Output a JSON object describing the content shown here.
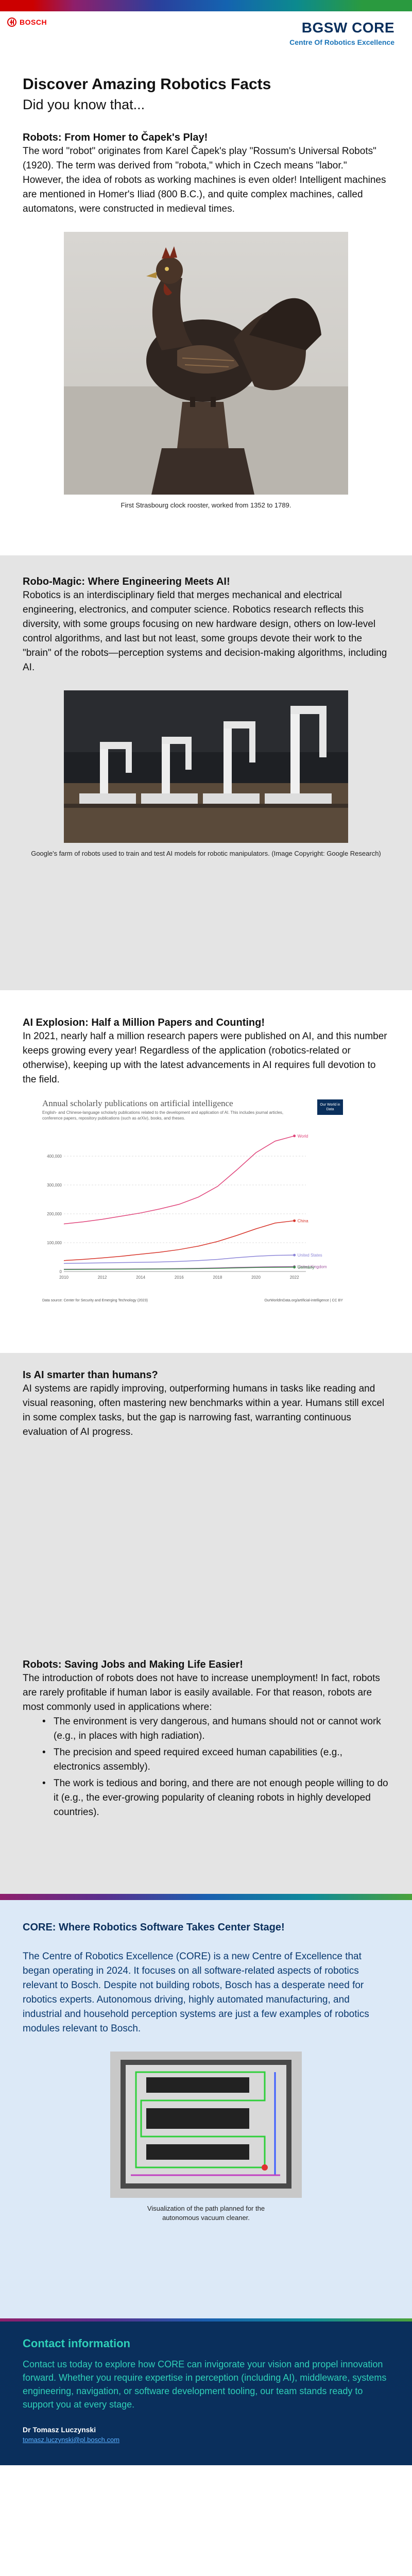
{
  "header": {
    "logo_text": "BOSCH",
    "brand_title": "BGSW CORE",
    "brand_subtitle": "Centre Of Robotics Excellence"
  },
  "intro": {
    "title": "Discover Amazing Robotics Facts",
    "subtitle": "Did you know that..."
  },
  "sections": {
    "homer": {
      "title": "Robots: From Homer to Čapek's Play!",
      "body": "The word \"robot\" originates from Karel Čapek's play \"Rossum's Universal Robots\" (1920). The term was derived from \"robota,\" which in Czech means \"labor.\" However, the idea of robots as working machines is even older! Intelligent machines are mentioned in Homer's Iliad (800 B.C.), and quite complex machines, called automatons, were constructed in medieval times.",
      "caption": "First Strasbourg clock rooster, worked from 1352 to 1789."
    },
    "robomagic": {
      "title": "Robo-Magic: Where Engineering Meets AI!",
      "body": "Robotics is an interdisciplinary field that merges mechanical and electrical engineering, electronics, and computer science. Robotics research reflects this diversity, with some groups focusing on new hardware design, others on low-level control algorithms, and last but not least, some groups devote their work to the \"brain\" of the robots—perception systems and decision-making algorithms, including AI.",
      "caption": "Google's farm of robots used to train and test AI models for robotic manipulators. (Image Copyright: Google Research)"
    },
    "explosion": {
      "title": "AI Explosion: Half a Million Papers and Counting!",
      "body": "In 2021, nearly half a million research papers were published on AI, and this number keeps growing every year! Regardless of the application (robotics-related or otherwise), keeping up with the latest advancements in AI requires full devotion to the field."
    },
    "smarter": {
      "title": "Is AI smarter than humans?",
      "body": "AI systems are rapidly improving, outperforming humans in tasks like reading and visual reasoning, often mastering new benchmarks within a year. Humans still excel in some complex tasks, but the gap is narrowing fast, warranting continuous evaluation of AI progress."
    },
    "jobs": {
      "title": "Robots: Saving Jobs and Making Life Easier!",
      "body": "The introduction of robots does not have to increase unemployment! In fact, robots are rarely profitable if human labor is easily available. For that reason, robots are most commonly used in applications where:",
      "bullets": [
        "The environment is very dangerous, and humans should not or cannot work (e.g., in places with high radiation).",
        "The precision and speed required exceed human capabilities (e.g., electronics assembly).",
        "The work is tedious and boring, and there are not enough people willing to do it (e.g., the ever-growing popularity of cleaning robots in highly developed countries)."
      ]
    },
    "core": {
      "title": "CORE: Where Robotics Software Takes Center Stage!",
      "body": "The Centre of Robotics Excellence (CORE) is a new Centre of Excellence that began operating in 2024. It focuses on all software-related aspects of robotics relevant to Bosch. Despite not building robots, Bosch has a desperate need for robotics experts. Autonomous driving, highly automated manufacturing, and industrial and household perception systems are just a few examples of robotics modules relevant to Bosch.",
      "caption": "Visualization of the path planned for the autonomous vacuum cleaner."
    }
  },
  "chart": {
    "title": "Annual scholarly publications on artificial intelligence",
    "subtitle": "English- and Chinese-language scholarly publications related to the development and application of AI. This includes journal articles, conference papers, repository publications (such as arXiv), books, and theses.",
    "badge": "Our World in Data",
    "source": "Data source: Center for Security and Emerging Technology (2023)",
    "credit": "OurWorldInData.org/artificial-intelligence | CC BY"
  },
  "chart_data": {
    "type": "line",
    "x": [
      2010,
      2011,
      2012,
      2013,
      2014,
      2015,
      2016,
      2017,
      2018,
      2019,
      2020,
      2021,
      2022
    ],
    "series": [
      {
        "name": "World",
        "color": "#e0457b",
        "values": [
          165000,
          172000,
          181000,
          192000,
          203000,
          217000,
          233000,
          258000,
          295000,
          352000,
          412000,
          452000,
          470000
        ]
      },
      {
        "name": "China",
        "color": "#d7342a",
        "values": [
          38000,
          42000,
          47000,
          53000,
          60000,
          67000,
          76000,
          88000,
          104000,
          125000,
          148000,
          168000,
          176000
        ]
      },
      {
        "name": "United States",
        "color": "#8d86d8",
        "values": [
          28000,
          29000,
          30000,
          31000,
          32000,
          33000,
          35000,
          38000,
          42000,
          48000,
          53000,
          56000,
          57000
        ]
      },
      {
        "name": "United Kingdom",
        "color": "#a35aa3",
        "values": [
          8000,
          8200,
          8500,
          8800,
          9200,
          9600,
          10200,
          11200,
          12500,
          14200,
          15500,
          16500,
          17000
        ]
      },
      {
        "name": "Germany",
        "color": "#3b8a4a",
        "values": [
          7000,
          7200,
          7500,
          7800,
          8200,
          8600,
          9100,
          9900,
          11000,
          12500,
          13800,
          14600,
          15000
        ]
      }
    ],
    "yticks": [
      "0",
      "100,000",
      "200,000",
      "300,000",
      "400,000"
    ],
    "xticks": [
      "2010",
      "2012",
      "2014",
      "2016",
      "2018",
      "2020",
      "2022"
    ],
    "ylim": [
      0,
      500000
    ],
    "xlim": [
      2010,
      2022.6
    ]
  },
  "contact": {
    "title": "Contact information",
    "body": "Contact us today to explore how CORE can invigorate your vision and propel innovation forward. Whether you require expertise in perception (including AI), middleware, systems engineering, navigation, or software development tooling, our team stands ready to support you at every stage.",
    "name": "Dr Tomasz Luczynski",
    "email": "tomasz.luczynski@pl.bosch.com"
  },
  "icons": {
    "logo": "bosch-armature-icon"
  }
}
